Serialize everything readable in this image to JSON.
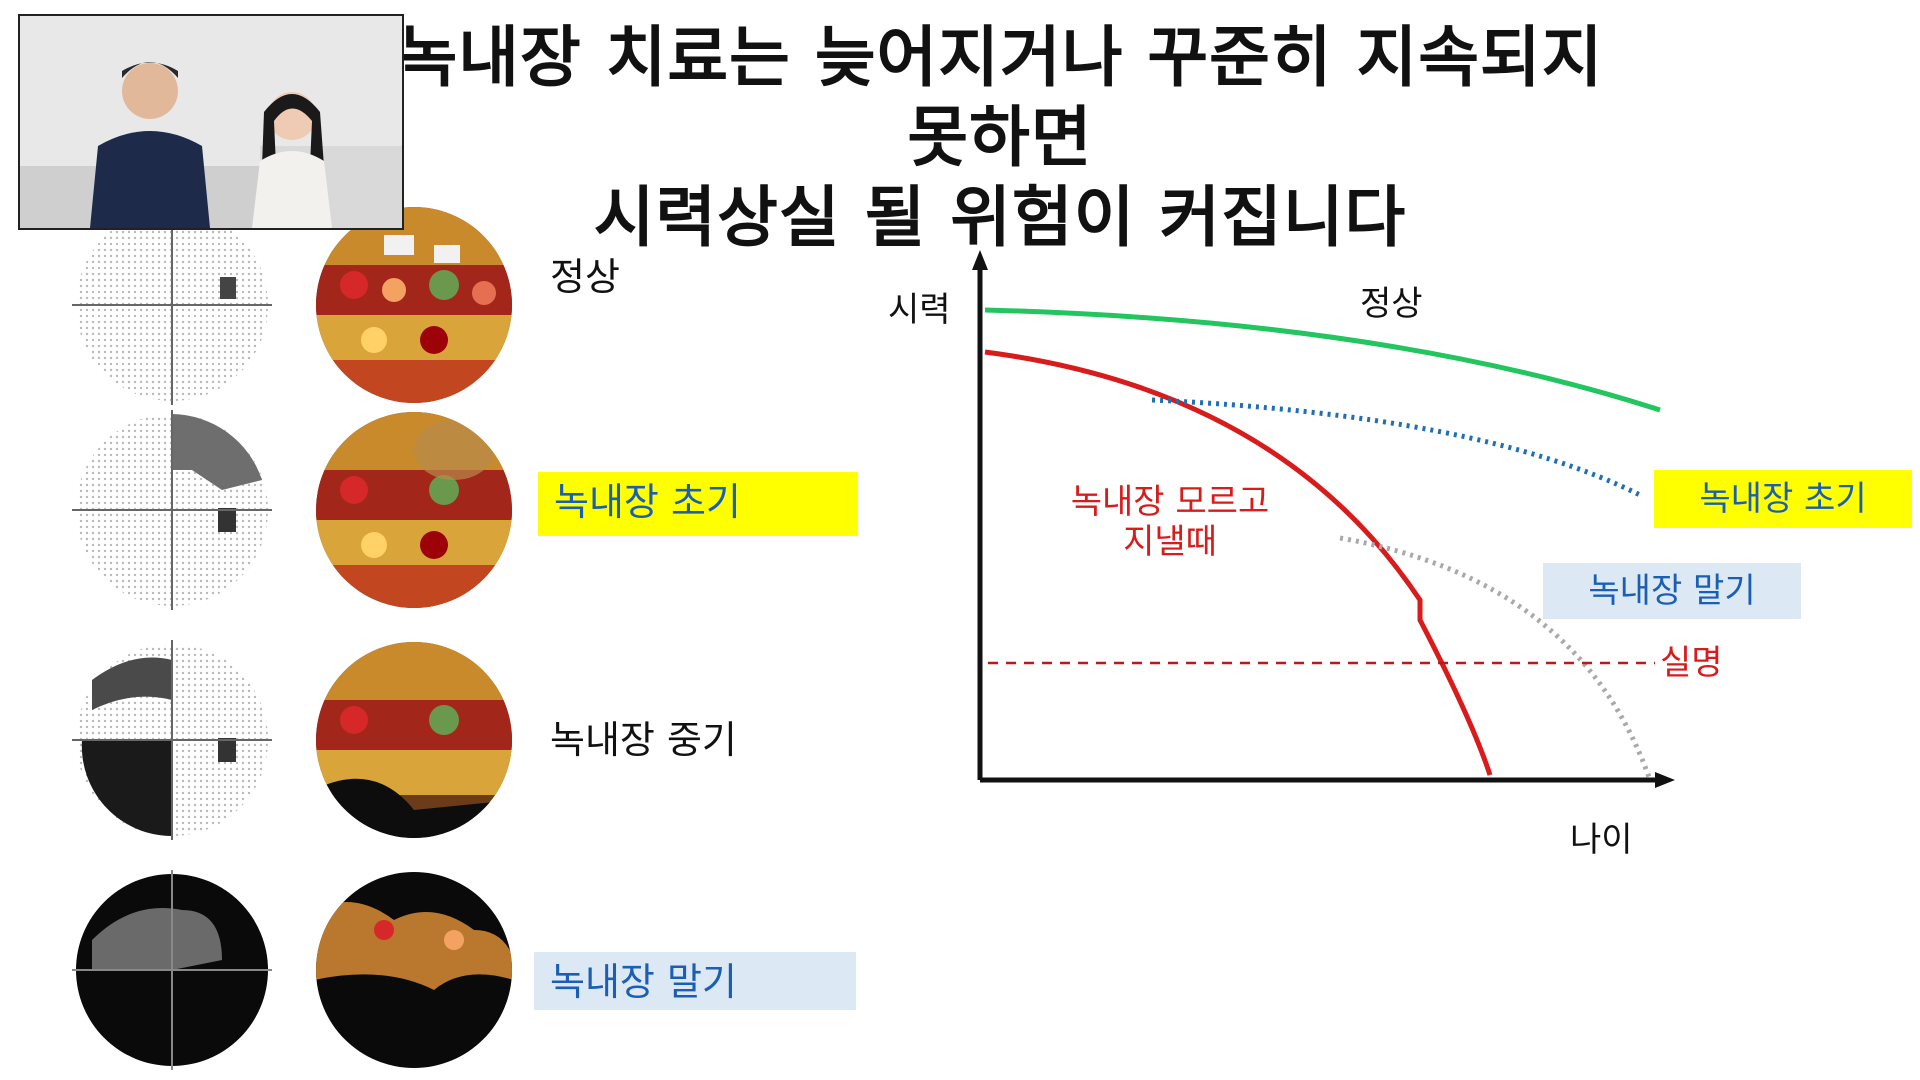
{
  "title": {
    "line1": "녹내장 치료는 늦어지거나 꾸준히 지속되지 못하면",
    "line2": "시력상실 될 위험이 커집니다"
  },
  "stages": [
    {
      "label": "정상",
      "style": "plain"
    },
    {
      "label": "녹내장 초기",
      "style": "yellow"
    },
    {
      "label": "녹내장 중기",
      "style": "plain"
    },
    {
      "label": "녹내장 말기",
      "style": "blue"
    }
  ],
  "chart_data": {
    "type": "line",
    "ylabel": "시력",
    "xlabel": "나이",
    "series": [
      {
        "name": "정상",
        "color": "#22c55e",
        "style": "solid"
      },
      {
        "name": "녹내장 모르고 지낼때",
        "color": "#d81b1b",
        "style": "solid"
      },
      {
        "name": "녹내장 초기",
        "color": "#1f6fb2",
        "style": "dotted"
      },
      {
        "name": "녹내장 말기",
        "color": "#a9a9a9",
        "style": "dotted"
      }
    ],
    "threshold": {
      "name": "실명",
      "color": "#b71c1c",
      "style": "dashed"
    },
    "labels": {
      "normal": "정상",
      "unaware_line1": "녹내장 모르고",
      "unaware_line2": "지낼때",
      "early": "녹내장 초기",
      "late": "녹내장 말기",
      "blind": "실명"
    }
  },
  "colors": {
    "yellow_highlight": "#ffff00",
    "blue_highlight": "#dce8f4",
    "label_blue": "#1a5fb4",
    "red": "#d81b1b",
    "green": "#22c55e"
  }
}
